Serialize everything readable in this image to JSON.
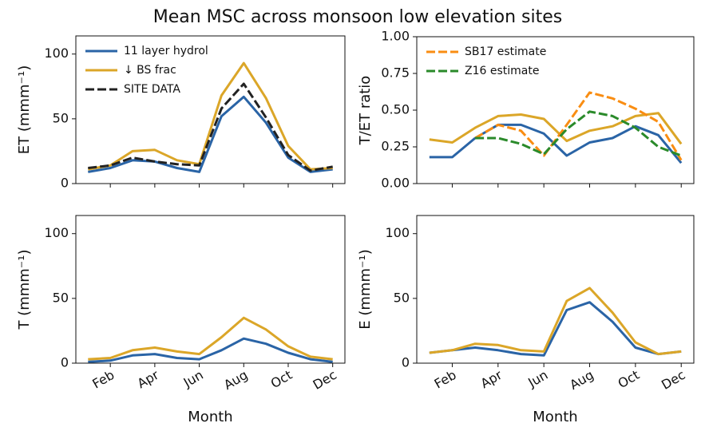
{
  "title": "Mean MSC across monsoon low elevation sites",
  "chart_data": [
    {
      "type": "line",
      "ylabel": "ET (mmm⁻¹)",
      "legend": "upper left",
      "x": [
        1,
        2,
        3,
        4,
        5,
        6,
        7,
        8,
        9,
        10,
        11,
        12
      ],
      "xlim": [
        0.45,
        12.55
      ],
      "xticks": [
        2,
        4,
        6,
        8,
        10,
        12
      ],
      "ylim": [
        0,
        114
      ],
      "yticks": [
        0,
        50,
        100
      ],
      "series": [
        {
          "name": "11 layer hydrol",
          "color": "#2a64a6",
          "dashed": false,
          "values": [
            9,
            12,
            18,
            17,
            12,
            9,
            52,
            67,
            47,
            20,
            9,
            11
          ]
        },
        {
          "name": "↓ BS frac",
          "color": "#dba628",
          "dashed": false,
          "values": [
            11,
            14,
            25,
            26,
            18,
            15,
            68,
            93,
            66,
            29,
            11,
            12
          ]
        },
        {
          "name": "SITE DATA",
          "color": "#222222",
          "dashed": true,
          "values": [
            12,
            14,
            20,
            17,
            15,
            14,
            58,
            77,
            51,
            22,
            10,
            13
          ]
        }
      ]
    },
    {
      "type": "line",
      "ylabel": "T/ET ratio",
      "legend": "upper left",
      "x": [
        1,
        2,
        3,
        4,
        5,
        6,
        7,
        8,
        9,
        10,
        11,
        12
      ],
      "xlim": [
        0.45,
        12.55
      ],
      "xticks": [
        2,
        4,
        6,
        8,
        10,
        12
      ],
      "ylim": [
        0,
        1
      ],
      "yticks": [
        {
          "value": 0,
          "label": "0.00"
        },
        {
          "value": 0.25,
          "label": "0.25"
        },
        {
          "value": 0.5,
          "label": "0.50"
        },
        {
          "value": 0.75,
          "label": "0.75"
        },
        {
          "value": 1,
          "label": "1.00"
        }
      ],
      "series": [
        {
          "color": "#2a64a6",
          "dashed": false,
          "values": [
            0.18,
            0.18,
            0.31,
            0.4,
            0.4,
            0.34,
            0.19,
            0.28,
            0.31,
            0.39,
            0.33,
            0.14
          ]
        },
        {
          "color": "#dba628",
          "dashed": false,
          "values": [
            0.3,
            0.28,
            0.38,
            0.46,
            0.47,
            0.44,
            0.29,
            0.36,
            0.39,
            0.46,
            0.48,
            0.27
          ]
        },
        {
          "name": "SB17 estimate",
          "color": "#f98d12",
          "dashed": true,
          "values": [
            null,
            null,
            0.31,
            0.4,
            0.36,
            0.19,
            0.4,
            0.62,
            0.58,
            0.51,
            0.42,
            0.16
          ]
        },
        {
          "name": "Z16 estimate",
          "color": "#2a8a2a",
          "dashed": true,
          "values": [
            null,
            null,
            0.31,
            0.31,
            0.27,
            0.2,
            0.37,
            0.49,
            0.46,
            0.38,
            0.25,
            0.19
          ]
        }
      ]
    },
    {
      "type": "line",
      "ylabel": "T (mmm⁻¹)",
      "xlabel": "Month",
      "x": [
        1,
        2,
        3,
        4,
        5,
        6,
        7,
        8,
        9,
        10,
        11,
        12
      ],
      "xlim": [
        0.45,
        12.55
      ],
      "xticks": [
        {
          "value": 2,
          "label": "Feb"
        },
        {
          "value": 4,
          "label": "Apr"
        },
        {
          "value": 6,
          "label": "Jun"
        },
        {
          "value": 8,
          "label": "Aug"
        },
        {
          "value": 10,
          "label": "Oct"
        },
        {
          "value": 12,
          "label": "Dec"
        }
      ],
      "ylim": [
        0,
        114
      ],
      "yticks": [
        0,
        50,
        100
      ],
      "series": [
        {
          "color": "#2a64a6",
          "dashed": false,
          "values": [
            1,
            2,
            6,
            7,
            4,
            3,
            10,
            19,
            15,
            8,
            3,
            1
          ]
        },
        {
          "color": "#dba628",
          "dashed": false,
          "values": [
            3,
            4,
            10,
            12,
            9,
            7,
            20,
            35,
            26,
            13,
            5,
            3
          ]
        }
      ]
    },
    {
      "type": "line",
      "ylabel": "E (mmm⁻¹)",
      "xlabel": "Month",
      "x": [
        1,
        2,
        3,
        4,
        5,
        6,
        7,
        8,
        9,
        10,
        11,
        12
      ],
      "xlim": [
        0.45,
        12.55
      ],
      "xticks": [
        {
          "value": 2,
          "label": "Feb"
        },
        {
          "value": 4,
          "label": "Apr"
        },
        {
          "value": 6,
          "label": "Jun"
        },
        {
          "value": 8,
          "label": "Aug"
        },
        {
          "value": 10,
          "label": "Oct"
        },
        {
          "value": 12,
          "label": "Dec"
        }
      ],
      "ylim": [
        0,
        114
      ],
      "yticks": [
        0,
        50,
        100
      ],
      "series": [
        {
          "color": "#2a64a6",
          "dashed": false,
          "values": [
            8,
            10,
            12,
            10,
            7,
            6,
            41,
            47,
            32,
            12,
            7,
            9
          ]
        },
        {
          "color": "#dba628",
          "dashed": false,
          "values": [
            8,
            10,
            15,
            14,
            10,
            9,
            48,
            58,
            39,
            16,
            7,
            9
          ]
        }
      ]
    }
  ]
}
